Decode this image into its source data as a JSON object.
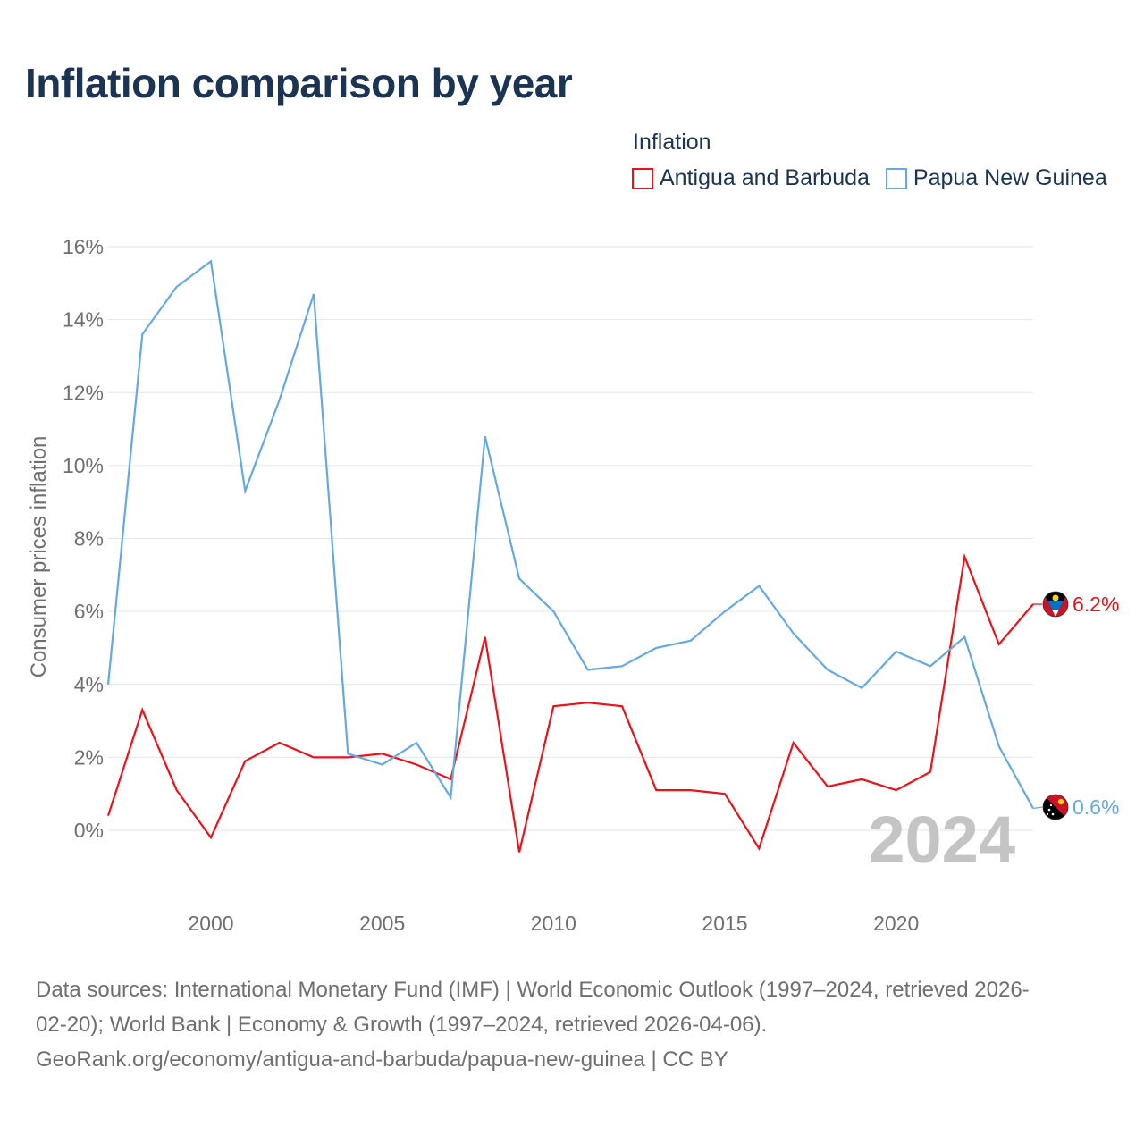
{
  "title": "Inflation comparison by year",
  "legend": {
    "heading": "Inflation",
    "items": [
      {
        "label": "Antigua and Barbuda",
        "color": "#e8141c"
      },
      {
        "label": "Papua New Guinea",
        "color": "#64a8e4"
      }
    ]
  },
  "chart_data": {
    "type": "line",
    "title": "Inflation comparison by year",
    "xlabel": "",
    "ylabel": "Consumer prices inflation",
    "xlim": [
      1997,
      2024
    ],
    "ylim": [
      -1.5,
      16.5
    ],
    "x_ticks": [
      2000,
      2005,
      2010,
      2015,
      2020
    ],
    "y_ticks": [
      {
        "value": 0,
        "label": "0%"
      },
      {
        "value": 2,
        "label": "2%"
      },
      {
        "value": 4,
        "label": "4%"
      },
      {
        "value": 6,
        "label": "6%"
      },
      {
        "value": 8,
        "label": "8%"
      },
      {
        "value": 10,
        "label": "10%"
      },
      {
        "value": 12,
        "label": "12%"
      },
      {
        "value": 14,
        "label": "14%"
      },
      {
        "value": 16,
        "label": "16%"
      }
    ],
    "grid": true,
    "year_watermark": "2024",
    "x": [
      1997,
      1998,
      1999,
      2000,
      2001,
      2002,
      2003,
      2004,
      2005,
      2006,
      2007,
      2008,
      2009,
      2010,
      2011,
      2012,
      2013,
      2014,
      2015,
      2016,
      2017,
      2018,
      2019,
      2020,
      2021,
      2022,
      2023,
      2024
    ],
    "series": [
      {
        "name": "Antigua and Barbuda",
        "color": "#e8141c",
        "values": [
          0.4,
          3.3,
          1.1,
          -0.2,
          1.9,
          2.4,
          2.0,
          2.0,
          2.1,
          1.8,
          1.4,
          5.3,
          -0.6,
          3.4,
          3.5,
          3.4,
          1.1,
          1.1,
          1.0,
          -0.5,
          2.4,
          1.2,
          1.4,
          1.1,
          1.6,
          7.5,
          5.1,
          6.2
        ],
        "end_label": "6.2%"
      },
      {
        "name": "Papua New Guinea",
        "color": "#64a8e4",
        "values": [
          4.0,
          13.6,
          14.9,
          15.6,
          9.3,
          11.8,
          14.7,
          2.1,
          1.8,
          2.4,
          0.9,
          10.8,
          6.9,
          6.0,
          4.4,
          4.5,
          5.0,
          5.2,
          6.0,
          6.7,
          5.4,
          4.4,
          3.9,
          4.9,
          4.5,
          5.3,
          2.3,
          0.6
        ],
        "end_label": "0.6%"
      }
    ]
  },
  "source": {
    "line1": "Data sources: International Monetary Fund (IMF) | World Economic Outlook (1997–2024, retrieved 2026-",
    "line2": "02-20); World Bank | Economy & Growth (1997–2024, retrieved 2026-04-06).",
    "line3": "GeoRank.org/economy/antigua-and-barbuda/papua-new-guinea | CC BY"
  }
}
